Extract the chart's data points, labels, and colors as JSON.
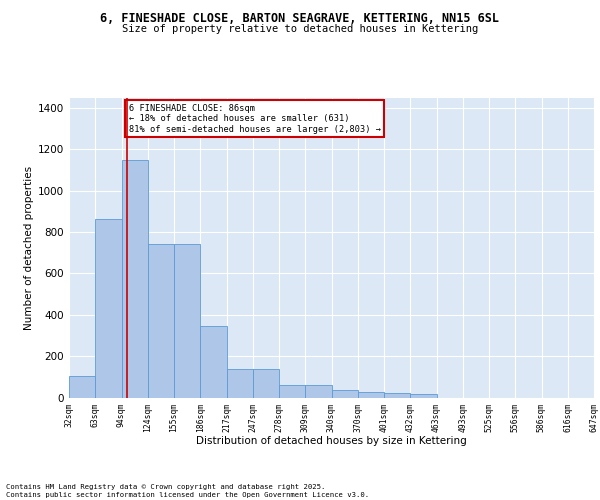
{
  "title1": "6, FINESHADE CLOSE, BARTON SEAGRAVE, KETTERING, NN15 6SL",
  "title2": "Size of property relative to detached houses in Kettering",
  "xlabel": "Distribution of detached houses by size in Kettering",
  "ylabel": "Number of detached properties",
  "bar_values": [
    105,
    865,
    1150,
    740,
    740,
    345,
    140,
    140,
    60,
    60,
    35,
    25,
    20,
    15,
    0,
    0,
    0,
    0,
    0,
    0
  ],
  "categories": [
    "32sqm",
    "63sqm",
    "94sqm",
    "124sqm",
    "155sqm",
    "186sqm",
    "217sqm",
    "247sqm",
    "278sqm",
    "309sqm",
    "340sqm",
    "370sqm",
    "401sqm",
    "432sqm",
    "463sqm",
    "493sqm",
    "525sqm",
    "556sqm",
    "586sqm",
    "616sqm",
    "647sqm"
  ],
  "bar_color": "#aec6e8",
  "bar_edgecolor": "#5b9bd5",
  "vline_color": "#cc0000",
  "annotation_text": "6 FINESHADE CLOSE: 86sqm\n← 18% of detached houses are smaller (631)\n81% of semi-detached houses are larger (2,803) →",
  "annotation_box_color": "#cc0000",
  "ylim": [
    0,
    1450
  ],
  "yticks": [
    0,
    200,
    400,
    600,
    800,
    1000,
    1200,
    1400
  ],
  "bg_color": "#dce8f5",
  "footer1": "Contains HM Land Registry data © Crown copyright and database right 2025.",
  "footer2": "Contains public sector information licensed under the Open Government Licence v3.0."
}
